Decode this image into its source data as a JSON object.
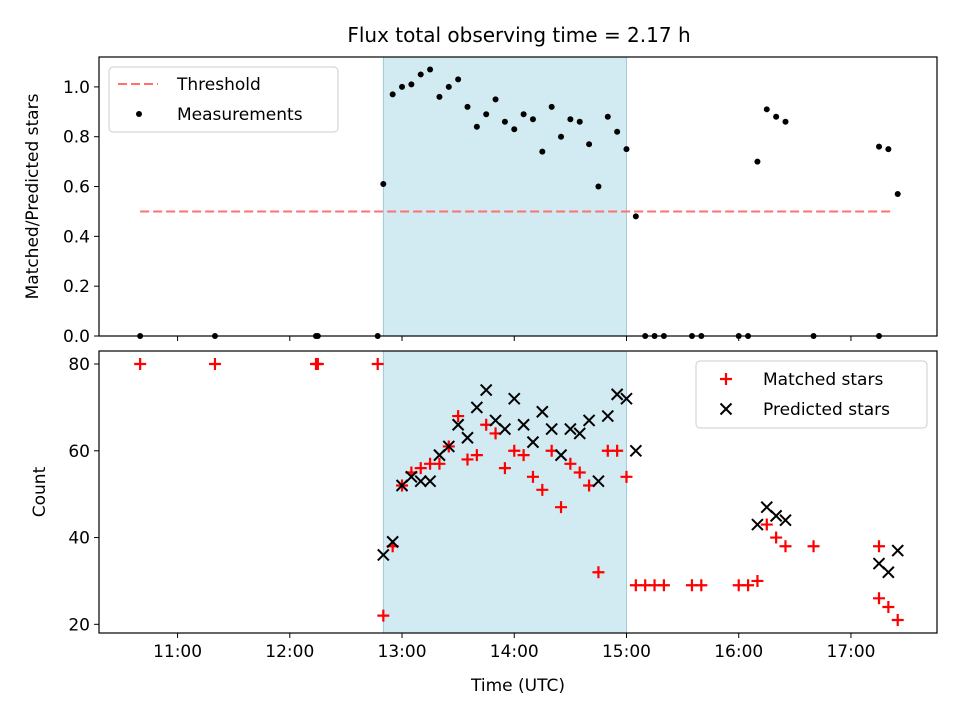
{
  "title": "Flux total observing time = 2.17 h",
  "colors": {
    "threshold": "#ff7070",
    "measurement": "#000000",
    "matched": "#ff0000",
    "predicted": "#000000",
    "shade": "#add8e6"
  },
  "chart_data": [
    {
      "type": "scatter",
      "ylabel": "Matched/Predicted stars",
      "xlim": [
        "10:18",
        "17:46"
      ],
      "ylim": [
        0,
        1.12
      ],
      "yticks": [
        "0.0",
        "0.2",
        "0.4",
        "0.6",
        "0.8",
        "1.0"
      ],
      "shaded_interval": [
        "12:50",
        "15:00"
      ],
      "threshold": {
        "value": 0.5,
        "x_range": [
          "10:40",
          "17:22"
        ]
      },
      "legend": {
        "position": "upper-left",
        "entries": [
          "Threshold",
          "Measurements"
        ]
      },
      "series": [
        {
          "name": "Measurements",
          "points": [
            [
              "10:40",
              0.0
            ],
            [
              "11:20",
              0.0
            ],
            [
              "12:14",
              0.0
            ],
            [
              "12:15",
              0.0
            ],
            [
              "12:47",
              0.0
            ],
            [
              "12:50",
              0.61
            ],
            [
              "12:55",
              0.97
            ],
            [
              "13:00",
              1.0
            ],
            [
              "13:05",
              1.01
            ],
            [
              "13:10",
              1.05
            ],
            [
              "13:15",
              1.07
            ],
            [
              "13:20",
              0.96
            ],
            [
              "13:25",
              1.0
            ],
            [
              "13:30",
              1.03
            ],
            [
              "13:35",
              0.92
            ],
            [
              "13:40",
              0.84
            ],
            [
              "13:45",
              0.89
            ],
            [
              "13:50",
              0.95
            ],
            [
              "13:55",
              0.86
            ],
            [
              "14:00",
              0.83
            ],
            [
              "14:05",
              0.89
            ],
            [
              "14:10",
              0.87
            ],
            [
              "14:15",
              0.74
            ],
            [
              "14:20",
              0.92
            ],
            [
              "14:25",
              0.8
            ],
            [
              "14:30",
              0.87
            ],
            [
              "14:35",
              0.86
            ],
            [
              "14:40",
              0.77
            ],
            [
              "14:45",
              0.6
            ],
            [
              "14:50",
              0.88
            ],
            [
              "14:55",
              0.82
            ],
            [
              "15:00",
              0.75
            ],
            [
              "15:05",
              0.48
            ],
            [
              "15:10",
              0.0
            ],
            [
              "15:15",
              0.0
            ],
            [
              "15:20",
              0.0
            ],
            [
              "15:35",
              0.0
            ],
            [
              "15:40",
              0.0
            ],
            [
              "16:00",
              0.0
            ],
            [
              "16:05",
              0.0
            ],
            [
              "16:10",
              0.7
            ],
            [
              "16:15",
              0.91
            ],
            [
              "16:20",
              0.88
            ],
            [
              "16:25",
              0.86
            ],
            [
              "16:40",
              0.0
            ],
            [
              "17:15",
              0.0
            ],
            [
              "17:15",
              0.76
            ],
            [
              "17:20",
              0.75
            ],
            [
              "17:25",
              0.57
            ]
          ]
        }
      ]
    },
    {
      "type": "scatter",
      "xlabel": "Time (UTC)",
      "ylabel": "Count",
      "xlim": [
        "10:18",
        "17:46"
      ],
      "ylim": [
        18,
        83
      ],
      "xticks": [
        "11:00",
        "12:00",
        "13:00",
        "14:00",
        "15:00",
        "16:00",
        "17:00"
      ],
      "yticks": [
        "20",
        "40",
        "60",
        "80"
      ],
      "shaded_interval": [
        "12:50",
        "15:00"
      ],
      "legend": {
        "position": "upper-right",
        "entries": [
          "Matched stars",
          "Predicted stars"
        ]
      },
      "series": [
        {
          "name": "Matched stars",
          "points": [
            [
              "10:40",
              80
            ],
            [
              "11:20",
              80
            ],
            [
              "12:14",
              80
            ],
            [
              "12:15",
              80
            ],
            [
              "12:47",
              80
            ],
            [
              "12:50",
              22
            ],
            [
              "12:55",
              38
            ],
            [
              "13:00",
              52
            ],
            [
              "13:05",
              55
            ],
            [
              "13:10",
              56
            ],
            [
              "13:15",
              57
            ],
            [
              "13:20",
              57
            ],
            [
              "13:25",
              61
            ],
            [
              "13:30",
              68
            ],
            [
              "13:35",
              58
            ],
            [
              "13:40",
              59
            ],
            [
              "13:45",
              66
            ],
            [
              "13:50",
              64
            ],
            [
              "13:55",
              56
            ],
            [
              "14:00",
              60
            ],
            [
              "14:05",
              59
            ],
            [
              "14:10",
              54
            ],
            [
              "14:15",
              51
            ],
            [
              "14:20",
              60
            ],
            [
              "14:25",
              47
            ],
            [
              "14:30",
              57
            ],
            [
              "14:35",
              55
            ],
            [
              "14:40",
              52
            ],
            [
              "14:45",
              32
            ],
            [
              "14:50",
              60
            ],
            [
              "14:55",
              60
            ],
            [
              "15:00",
              54
            ],
            [
              "15:05",
              29
            ],
            [
              "15:10",
              29
            ],
            [
              "15:15",
              29
            ],
            [
              "15:20",
              29
            ],
            [
              "15:35",
              29
            ],
            [
              "15:40",
              29
            ],
            [
              "16:00",
              29
            ],
            [
              "16:05",
              29
            ],
            [
              "16:10",
              30
            ],
            [
              "16:15",
              43
            ],
            [
              "16:20",
              40
            ],
            [
              "16:25",
              38
            ],
            [
              "16:40",
              38
            ],
            [
              "17:15",
              38
            ],
            [
              "17:15",
              26
            ],
            [
              "17:20",
              24
            ],
            [
              "17:25",
              21
            ]
          ]
        },
        {
          "name": "Predicted stars",
          "points": [
            [
              "12:50",
              36
            ],
            [
              "12:55",
              39
            ],
            [
              "13:00",
              52
            ],
            [
              "13:05",
              54
            ],
            [
              "13:10",
              53
            ],
            [
              "13:15",
              53
            ],
            [
              "13:20",
              59
            ],
            [
              "13:25",
              61
            ],
            [
              "13:30",
              66
            ],
            [
              "13:35",
              63
            ],
            [
              "13:40",
              70
            ],
            [
              "13:45",
              74
            ],
            [
              "13:50",
              67
            ],
            [
              "13:55",
              65
            ],
            [
              "14:00",
              72
            ],
            [
              "14:05",
              66
            ],
            [
              "14:10",
              62
            ],
            [
              "14:15",
              69
            ],
            [
              "14:20",
              65
            ],
            [
              "14:25",
              59
            ],
            [
              "14:30",
              65
            ],
            [
              "14:35",
              64
            ],
            [
              "14:40",
              67
            ],
            [
              "14:45",
              53
            ],
            [
              "14:50",
              68
            ],
            [
              "14:55",
              73
            ],
            [
              "15:00",
              72
            ],
            [
              "15:05",
              60
            ],
            [
              "16:10",
              43
            ],
            [
              "16:15",
              47
            ],
            [
              "16:20",
              45
            ],
            [
              "16:25",
              44
            ],
            [
              "17:15",
              34
            ],
            [
              "17:20",
              32
            ],
            [
              "17:25",
              37
            ]
          ]
        }
      ]
    }
  ]
}
